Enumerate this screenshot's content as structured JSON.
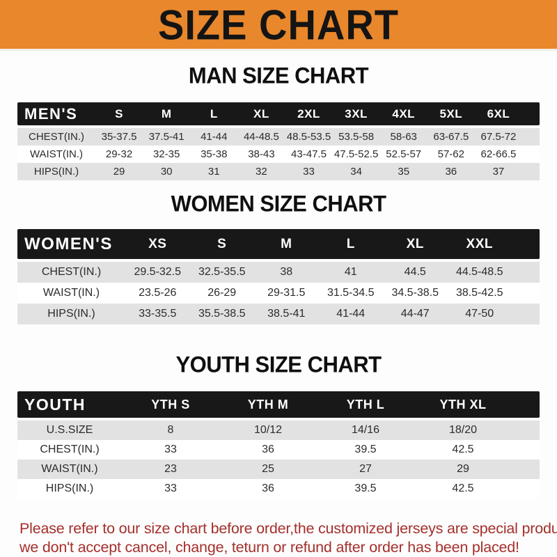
{
  "banner": {
    "title": "SIZE CHART"
  },
  "colors": {
    "orange": "#E8872B",
    "header_bg": "#181818",
    "row_gray": "#E2E2E2",
    "red": "#A4302C"
  },
  "sections": [
    {
      "key": "men",
      "heading": "MAN SIZE CHART",
      "header_label": "MEN'S",
      "columns": [
        "S",
        "M",
        "L",
        "XL",
        "2XL",
        "3XL",
        "4XL",
        "5XL",
        "6XL"
      ],
      "rows": [
        {
          "label": "CHEST(IN.)",
          "values": [
            "35-37.5",
            "37.5-41",
            "41-44",
            "44-48.5",
            "48.5-53.5",
            "53.5-58",
            "58-63",
            "63-67.5",
            "67.5-72"
          ]
        },
        {
          "label": "WAIST(IN.)",
          "values": [
            "29-32",
            "32-35",
            "35-38",
            "38-43",
            "43-47.5",
            "47.5-52.5",
            "52.5-57",
            "57-62",
            "62-66.5"
          ]
        },
        {
          "label": "HIPS(IN.)",
          "values": [
            "29",
            "30",
            "31",
            "32",
            "33",
            "34",
            "35",
            "36",
            "37"
          ]
        }
      ]
    },
    {
      "key": "women",
      "heading": "WOMEN SIZE CHART",
      "header_label": "WOMEN'S",
      "columns": [
        "XS",
        "S",
        "M",
        "L",
        "XL",
        "XXL"
      ],
      "rows": [
        {
          "label": "CHEST(IN.)",
          "values": [
            "29.5-32.5",
            "32.5-35.5",
            "38",
            "41",
            "44.5",
            "44.5-48.5"
          ]
        },
        {
          "label": "WAIST(IN.)",
          "values": [
            "23.5-26",
            "26-29",
            "29-31.5",
            "31.5-34.5",
            "34.5-38.5",
            "38.5-42.5"
          ]
        },
        {
          "label": "HIPS(IN.)",
          "values": [
            "33-35.5",
            "35.5-38.5",
            "38.5-41",
            "41-44",
            "44-47",
            "47-50"
          ]
        }
      ]
    },
    {
      "key": "youth",
      "heading": "YOUTH SIZE CHART",
      "header_label": "YOUTH",
      "columns": [
        "YTH S",
        "YTH M",
        "YTH L",
        "YTH XL"
      ],
      "rows": [
        {
          "label": "U.S.SIZE",
          "values": [
            "8",
            "10/12",
            "14/16",
            "18/20"
          ]
        },
        {
          "label": "CHEST(IN.)",
          "values": [
            "33",
            "36",
            "39.5",
            "42.5"
          ]
        },
        {
          "label": "WAIST(IN.)",
          "values": [
            "23",
            "25",
            "27",
            "29"
          ]
        },
        {
          "label": "HIPS(IN.)",
          "values": [
            "33",
            "36",
            "39.5",
            "42.5"
          ]
        }
      ]
    }
  ],
  "footer": {
    "line1": "Please refer to our size chart before order,the customized jerseys are special products,",
    "line2": "we don't accept cancel, change, teturn or refund after order has been placed!"
  }
}
